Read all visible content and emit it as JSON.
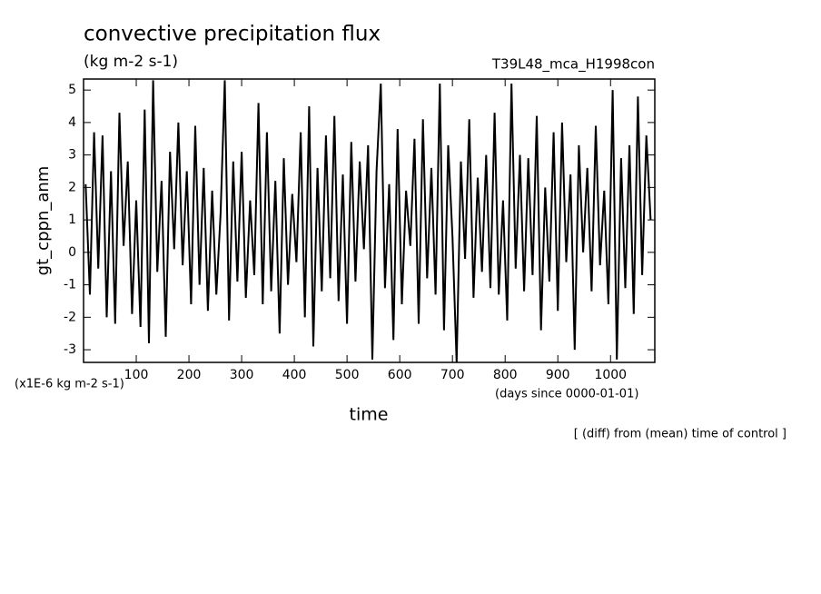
{
  "chart_data": {
    "type": "line",
    "title": "convective precipitation flux",
    "subtitle": "(kg m-2 s-1)",
    "run_label": "T39L48_mca_H1998con",
    "y_label": "gt_cppn_anm",
    "x_label": "time",
    "y_unit": "(x1E-6 kg m-2 s-1)",
    "x_unit": "(days since 0000-01-01)",
    "note": "[ (diff) from (mean) time of control ]",
    "color": "#000000",
    "xlim": [
      0,
      1084
    ],
    "ylim": [
      -3.39,
      5.34
    ],
    "xticks": [
      100,
      200,
      300,
      400,
      500,
      600,
      700,
      800,
      900,
      1000
    ],
    "yticks": [
      -3,
      -2,
      -1,
      0,
      1,
      2,
      3,
      4,
      5
    ],
    "x": [
      4,
      12,
      20,
      28,
      36,
      44,
      52,
      60,
      68,
      76,
      84,
      92,
      100,
      108,
      116,
      124,
      132,
      140,
      148,
      156,
      164,
      172,
      180,
      188,
      196,
      204,
      212,
      220,
      228,
      236,
      244,
      252,
      260,
      268,
      276,
      284,
      292,
      300,
      308,
      316,
      324,
      332,
      340,
      348,
      356,
      364,
      372,
      380,
      388,
      396,
      404,
      412,
      420,
      428,
      436,
      444,
      452,
      460,
      468,
      476,
      484,
      492,
      500,
      508,
      516,
      524,
      532,
      540,
      548,
      556,
      564,
      572,
      580,
      588,
      596,
      604,
      612,
      620,
      628,
      636,
      644,
      652,
      660,
      668,
      676,
      684,
      692,
      700,
      708,
      716,
      724,
      732,
      740,
      748,
      756,
      764,
      772,
      780,
      788,
      796,
      804,
      812,
      820,
      828,
      836,
      844,
      852,
      860,
      868,
      876,
      884,
      892,
      900,
      908,
      916,
      924,
      932,
      940,
      948,
      956,
      964,
      972,
      980,
      988,
      996,
      1004,
      1012,
      1020,
      1028,
      1036,
      1044,
      1052,
      1060,
      1068,
      1076
    ],
    "values": [
      2.1,
      -1.3,
      3.7,
      -0.5,
      3.6,
      -2.0,
      2.5,
      -2.2,
      4.3,
      0.2,
      2.8,
      -1.9,
      1.6,
      -2.3,
      4.4,
      -2.8,
      5.3,
      -0.6,
      2.2,
      -2.6,
      3.1,
      0.1,
      4.0,
      -0.4,
      2.5,
      -1.6,
      3.9,
      -1.0,
      2.6,
      -1.8,
      1.9,
      -1.3,
      1.2,
      5.3,
      -2.1,
      2.8,
      -0.9,
      3.1,
      -1.4,
      1.6,
      -0.7,
      4.6,
      -1.6,
      3.7,
      -1.2,
      2.2,
      -2.5,
      2.9,
      -1.0,
      1.8,
      -0.3,
      3.7,
      -2.0,
      4.5,
      -2.9,
      2.6,
      -1.2,
      3.6,
      -0.8,
      4.2,
      -1.5,
      2.4,
      -2.2,
      3.4,
      -0.9,
      2.8,
      0.1,
      3.3,
      -3.3,
      2.5,
      5.2,
      -1.1,
      2.1,
      -2.7,
      3.8,
      -1.6,
      1.9,
      0.2,
      3.5,
      -2.2,
      4.1,
      -0.8,
      2.6,
      -1.3,
      5.2,
      -2.4,
      3.3,
      0.5,
      -3.4,
      2.8,
      -0.2,
      4.1,
      -1.4,
      2.3,
      -0.6,
      3.0,
      -1.1,
      4.3,
      -1.3,
      1.6,
      -2.1,
      5.2,
      -0.5,
      3.0,
      -1.2,
      2.9,
      -0.7,
      4.2,
      -2.4,
      2.0,
      -0.9,
      3.7,
      -1.8,
      4.0,
      -0.3,
      2.4,
      -3.0,
      3.3,
      0.0,
      2.6,
      -1.2,
      3.9,
      -0.4,
      1.9,
      -1.6,
      5.0,
      -3.3,
      2.9,
      -1.1,
      3.3,
      -1.9,
      4.8,
      -0.7,
      3.6,
      1.0
    ]
  }
}
